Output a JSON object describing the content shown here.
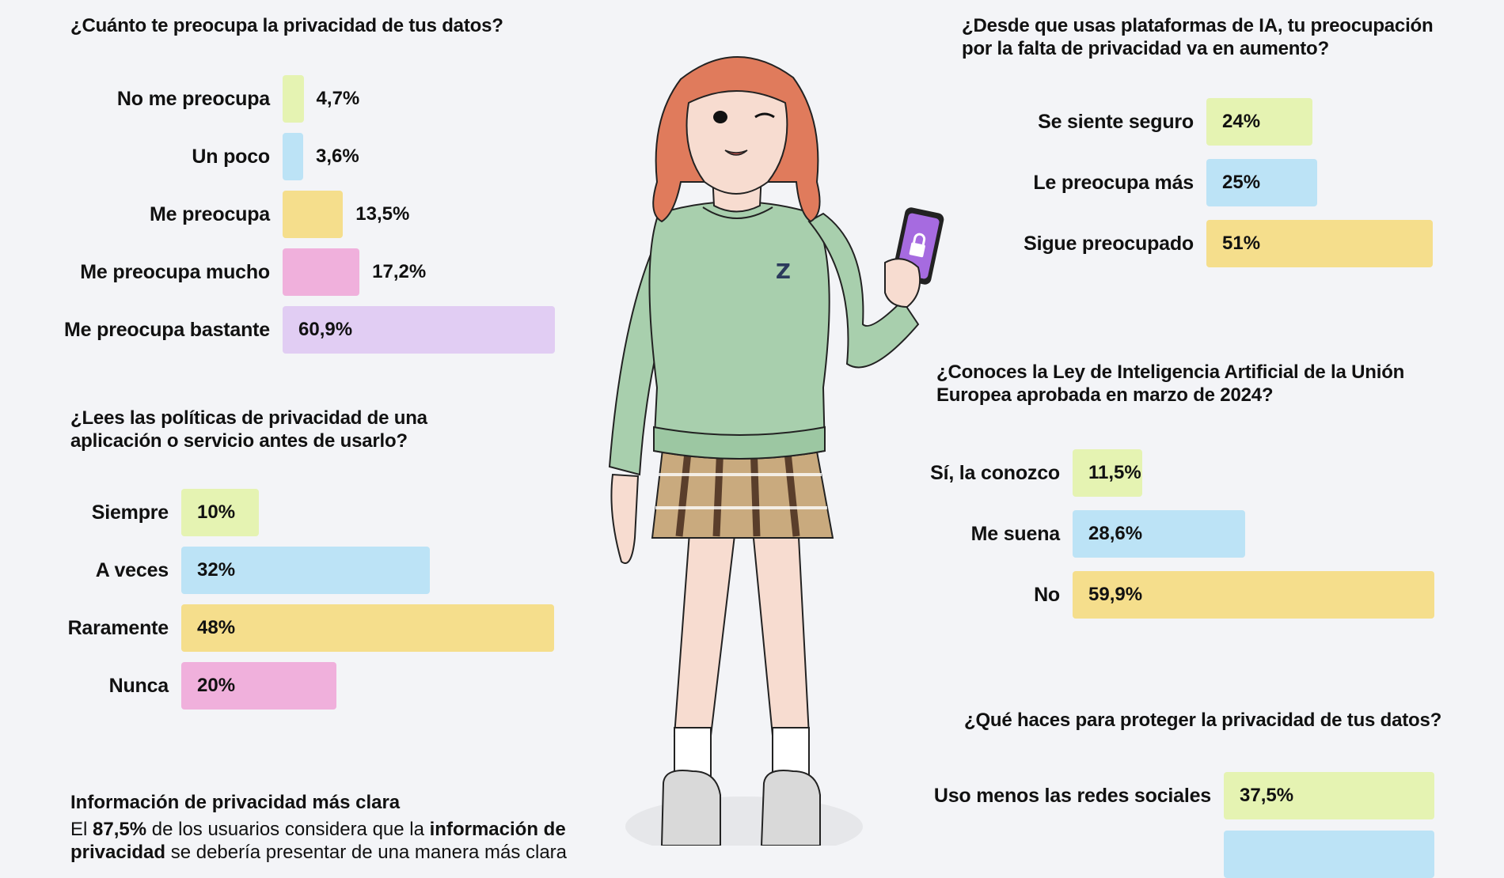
{
  "chart_data": [
    {
      "type": "bar",
      "orientation": "horizontal",
      "title": "¿Cuánto te preocupa la privacidad de tus datos?",
      "categories": [
        "No me preocupa",
        "Un poco",
        "Me preocupa",
        "Me preocupa mucho",
        "Me preocupa bastante"
      ],
      "values": [
        4.7,
        3.6,
        13.5,
        17.2,
        60.9
      ],
      "value_labels": [
        "4,7%",
        "3,6%",
        "13,5%",
        "17,2%",
        "60,9%"
      ],
      "colors": [
        "#e5f3b2",
        "#bce3f6",
        "#f5de8c",
        "#f0b0dc",
        "#e1cdf3"
      ]
    },
    {
      "type": "bar",
      "orientation": "horizontal",
      "title": "¿Desde que usas plataformas de IA, tu preocupación por la falta de privacidad va en aumento?",
      "categories": [
        "Se siente seguro",
        "Le preocupa más",
        "Sigue preocupado"
      ],
      "values": [
        24,
        25,
        51
      ],
      "value_labels": [
        "24%",
        "25%",
        "51%"
      ],
      "colors": [
        "#e5f3b2",
        "#bce3f6",
        "#f5de8c"
      ]
    },
    {
      "type": "bar",
      "orientation": "horizontal",
      "title": "¿Lees las políticas de privacidad de una aplicación o servicio antes de usarlo?",
      "categories": [
        "Siempre",
        "A veces",
        "Raramente",
        "Nunca"
      ],
      "values": [
        10,
        32,
        48,
        20
      ],
      "value_labels": [
        "10%",
        "32%",
        "48%",
        "20%"
      ],
      "colors": [
        "#e5f3b2",
        "#bce3f6",
        "#f5de8c",
        "#f0b0dc"
      ]
    },
    {
      "type": "bar",
      "orientation": "horizontal",
      "title": "¿Conoces la Ley de Inteligencia Artificial de la Unión Europea aprobada en marzo de 2024?",
      "categories": [
        "Sí, la conozco",
        "Me suena",
        "No"
      ],
      "values": [
        11.5,
        28.6,
        59.9
      ],
      "value_labels": [
        "11,5%",
        "28,6%",
        "59,9%"
      ],
      "colors": [
        "#e5f3b2",
        "#bce3f6",
        "#f5de8c"
      ]
    },
    {
      "type": "bar",
      "orientation": "horizontal",
      "title": "¿Qué haces para proteger la privacidad de tus datos?",
      "categories": [
        "Uso menos las redes sociales"
      ],
      "values": [
        37.5
      ],
      "value_labels": [
        "37,5%"
      ],
      "colors": [
        "#e5f3b2",
        "#bce3f6"
      ]
    }
  ],
  "note": {
    "title": "Información de privacidad más clara",
    "p1": "El ",
    "b1": "87,5%",
    "p2": " de los usuarios considera que la ",
    "b2": "información de privacidad",
    "p3": " se debería presentar de una manera más clara"
  },
  "illustration": {
    "sweater_logo": "Z",
    "hair_color": "#e07b5c",
    "sweater_color": "#a8cfad",
    "phone_color": "#a66be0",
    "icon": "lock-icon"
  }
}
